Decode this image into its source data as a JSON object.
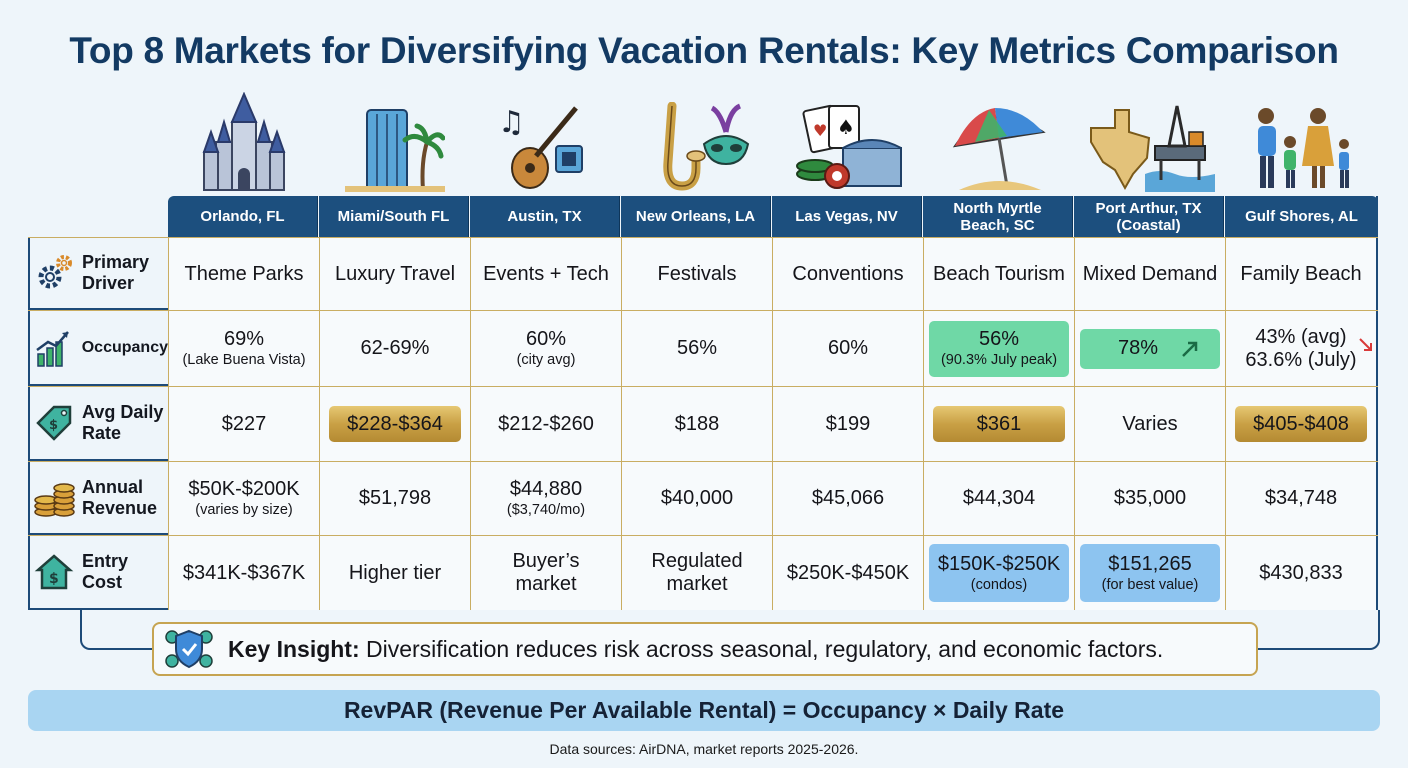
{
  "title": "Top 8 Markets for Diversifying Vacation Rentals: Key Metrics Comparison",
  "markets": [
    {
      "name": "Orlando, FL",
      "icon": "castle-icon"
    },
    {
      "name": "Miami/South FL",
      "icon": "skyscraper-palm-icon"
    },
    {
      "name": "Austin, TX",
      "icon": "guitar-music-icon"
    },
    {
      "name": "New Orleans, LA",
      "icon": "saxophone-mask-icon"
    },
    {
      "name": "Las Vegas, NV",
      "icon": "cards-chips-icon"
    },
    {
      "name": "North Myrtle Beach, SC",
      "icon": "beach-umbrella-icon"
    },
    {
      "name": "Port Arthur, TX (Coastal)",
      "icon": "texas-oil-rig-icon"
    },
    {
      "name": "Gulf Shores, AL",
      "icon": "family-icon"
    }
  ],
  "rows": {
    "driver": {
      "label": "Primary Driver",
      "values": [
        "Theme Parks",
        "Luxury Travel",
        "Events + Tech",
        "Festivals",
        "Conventions",
        "Beach Tourism",
        "Mixed Demand",
        "Family Beach"
      ]
    },
    "occupancy": {
      "label": "Occupancy",
      "values": [
        {
          "main": "69%",
          "sub": "(Lake Buena Vista)"
        },
        {
          "main": "62-69%",
          "sub": ""
        },
        {
          "main": "60%",
          "sub": "(city avg)"
        },
        {
          "main": "56%",
          "sub": ""
        },
        {
          "main": "60%",
          "sub": ""
        },
        {
          "main": "56%",
          "sub": "(90.3% July peak)"
        },
        {
          "main": "78%",
          "sub": ""
        },
        {
          "main": "43% (avg)",
          "sub": "63.6% (July)"
        }
      ]
    },
    "adr": {
      "label": "Avg Daily Rate",
      "values": [
        "$227",
        "$228-$364",
        "$212-$260",
        "$188",
        "$199",
        "$361",
        "Varies",
        "$405-$408"
      ]
    },
    "revenue": {
      "label": "Annual Revenue",
      "values": [
        {
          "main": "$50K-$200K",
          "sub": "(varies by size)"
        },
        {
          "main": "$51,798",
          "sub": ""
        },
        {
          "main": "$44,880",
          "sub": "($3,740/mo)"
        },
        {
          "main": "$40,000",
          "sub": ""
        },
        {
          "main": "$45,066",
          "sub": ""
        },
        {
          "main": "$44,304",
          "sub": ""
        },
        {
          "main": "$35,000",
          "sub": ""
        },
        {
          "main": "$34,748",
          "sub": ""
        }
      ]
    },
    "entry": {
      "label": "Entry Cost",
      "values": [
        {
          "main": "$341K-$367K",
          "sub": ""
        },
        {
          "main": "Higher tier",
          "sub": ""
        },
        {
          "main": "Buyer’s market",
          "sub": ""
        },
        {
          "main": "Regulated market",
          "sub": ""
        },
        {
          "main": "$250K-$450K",
          "sub": ""
        },
        {
          "main": "$150K-$250K",
          "sub": "(condos)"
        },
        {
          "main": "$151,265",
          "sub": "(for best value)"
        },
        {
          "main": "$430,833",
          "sub": ""
        }
      ]
    }
  },
  "colors": {
    "header": "#1c4f7e",
    "gold_highlight": "#c9a045",
    "green_highlight": "#6fd8a6",
    "blue_highlight": "#8dc4f0",
    "trend_up": "#1a6b45",
    "trend_down": "#d93a3a"
  },
  "insight": {
    "label": "Key Insight:",
    "text": "Diversification reduces risk across seasonal, regulatory, and economic factors."
  },
  "formula": "RevPAR (Revenue Per Available Rental) = Occupancy × Daily Rate",
  "sources": "Data sources: AirDNA, market reports 2025-2026."
}
